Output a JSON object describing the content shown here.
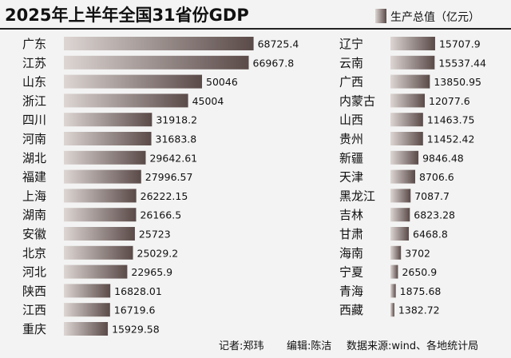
{
  "chart_data": [
    {
      "type": "bar",
      "title": "2025年上半年全国31省份GDP",
      "legend": [
        "生产总值（亿元）"
      ],
      "legend_position": "top-right",
      "orientation": "horizontal",
      "categories": [
        "广东",
        "江苏",
        "山东",
        "浙江",
        "四川",
        "河南",
        "湖北",
        "福建",
        "上海",
        "湖南",
        "安徽",
        "北京",
        "河北",
        "陕西",
        "江西",
        "重庆"
      ],
      "values": [
        68725.4,
        66967.8,
        50046,
        45004,
        31918.2,
        31683.8,
        29642.61,
        27996.57,
        26222.15,
        26166.5,
        25723,
        25029.2,
        22965.9,
        16828.01,
        16719.6,
        15929.58
      ],
      "value_labels": [
        "68725.4",
        "66967.8",
        "50046",
        "45004",
        "31918.2",
        "31683.8",
        "29642.61",
        "27996.57",
        "26222.15",
        "26166.5",
        "25723",
        "25029.2",
        "22965.9",
        "16828.01",
        "16719.6",
        "15929.58"
      ],
      "xlim": [
        0,
        70000
      ]
    },
    {
      "type": "bar",
      "orientation": "horizontal",
      "categories": [
        "辽宁",
        "云南",
        "广西",
        "内蒙古",
        "山西",
        "贵州",
        "新疆",
        "天津",
        "黑龙江",
        "吉林",
        "甘肃",
        "海南",
        "宁夏",
        "青海",
        "西藏"
      ],
      "values": [
        15707.9,
        15537.44,
        13850.95,
        12077.6,
        11463.75,
        11452.42,
        9846.48,
        8706.6,
        7087.7,
        6823.28,
        6468.8,
        3702,
        2650.9,
        1875.68,
        1382.72
      ],
      "value_labels": [
        "15707.9",
        "15537.44",
        "13850.95",
        "12077.6",
        "11463.75",
        "11452.42",
        "9846.48",
        "8706.6",
        "7087.7",
        "6823.28",
        "6468.8",
        "3702",
        "2650.9",
        "1875.68",
        "1382.72"
      ],
      "xlim": [
        0,
        16000
      ]
    }
  ],
  "colors": {
    "bar_light": "#ddd6d3",
    "bar_dark": "#5a4a48",
    "background": "#f3f3f3",
    "title_rule": "#222222"
  },
  "footer": {
    "reporter": "记者:郑玮",
    "editor": "编辑:陈洁",
    "source": "数据来源:wind、各地统计局"
  }
}
